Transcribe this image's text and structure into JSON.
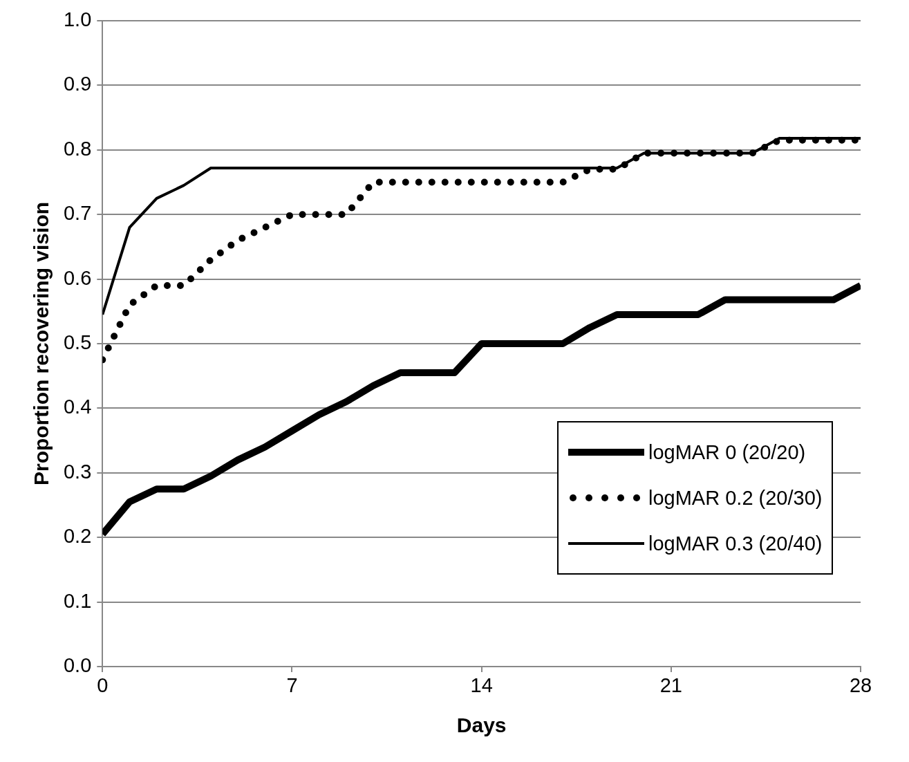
{
  "chart_data": {
    "type": "line",
    "xlabel": "Days",
    "ylabel": "Proportion recovering vision",
    "x": [
      0,
      1,
      2,
      3,
      4,
      5,
      6,
      7,
      8,
      9,
      10,
      11,
      12,
      13,
      14,
      15,
      16,
      17,
      18,
      19,
      20,
      21,
      22,
      23,
      24,
      25,
      26,
      27,
      28
    ],
    "series": [
      {
        "name": "logMAR 0 (20/20)",
        "color": "#000000",
        "line_style": "solid",
        "values": [
          0.205,
          0.255,
          0.275,
          0.275,
          0.295,
          0.32,
          0.34,
          0.365,
          0.39,
          0.41,
          0.435,
          0.455,
          0.455,
          0.455,
          0.5,
          0.5,
          0.5,
          0.5,
          0.525,
          0.545,
          0.545,
          0.545,
          0.545,
          0.568,
          0.568,
          0.568,
          0.568,
          0.568,
          0.59
        ]
      },
      {
        "name": "logMAR 0.2 (20/30)",
        "color": "#000000",
        "line_style": "dotted",
        "values": [
          0.475,
          0.56,
          0.59,
          0.59,
          0.63,
          0.66,
          0.68,
          0.7,
          0.7,
          0.7,
          0.75,
          0.75,
          0.75,
          0.75,
          0.75,
          0.75,
          0.75,
          0.75,
          0.77,
          0.77,
          0.795,
          0.795,
          0.795,
          0.795,
          0.795,
          0.815,
          0.815,
          0.815,
          0.815
        ]
      },
      {
        "name": "logMAR 0.3 (20/40)",
        "color": "#000000",
        "line_style": "solid",
        "values": [
          0.545,
          0.68,
          0.725,
          0.745,
          0.772,
          0.772,
          0.772,
          0.772,
          0.772,
          0.772,
          0.772,
          0.772,
          0.772,
          0.772,
          0.772,
          0.772,
          0.772,
          0.772,
          0.772,
          0.772,
          0.795,
          0.795,
          0.795,
          0.795,
          0.795,
          0.818,
          0.818,
          0.818,
          0.818
        ]
      }
    ],
    "xlim": [
      0,
      28
    ],
    "xticks": [
      0,
      7,
      14,
      21,
      28
    ],
    "ylim": [
      0,
      1
    ],
    "yticks": [
      {
        "value": 0,
        "label": "0.0"
      },
      {
        "value": 0.1,
        "label": "0.1"
      },
      {
        "value": 0.2,
        "label": "0.2"
      },
      {
        "value": 0.3,
        "label": "0.3"
      },
      {
        "value": 0.4,
        "label": "0.4"
      },
      {
        "value": 0.5,
        "label": "0.5"
      },
      {
        "value": 0.6,
        "label": "0.6"
      },
      {
        "value": 0.7,
        "label": "0.7"
      },
      {
        "value": 0.8,
        "label": "0.8"
      },
      {
        "value": 0.9,
        "label": "0.9"
      },
      {
        "value": 1,
        "label": "1.0"
      }
    ],
    "grid": "y",
    "legend": "right",
    "marker": "none"
  }
}
